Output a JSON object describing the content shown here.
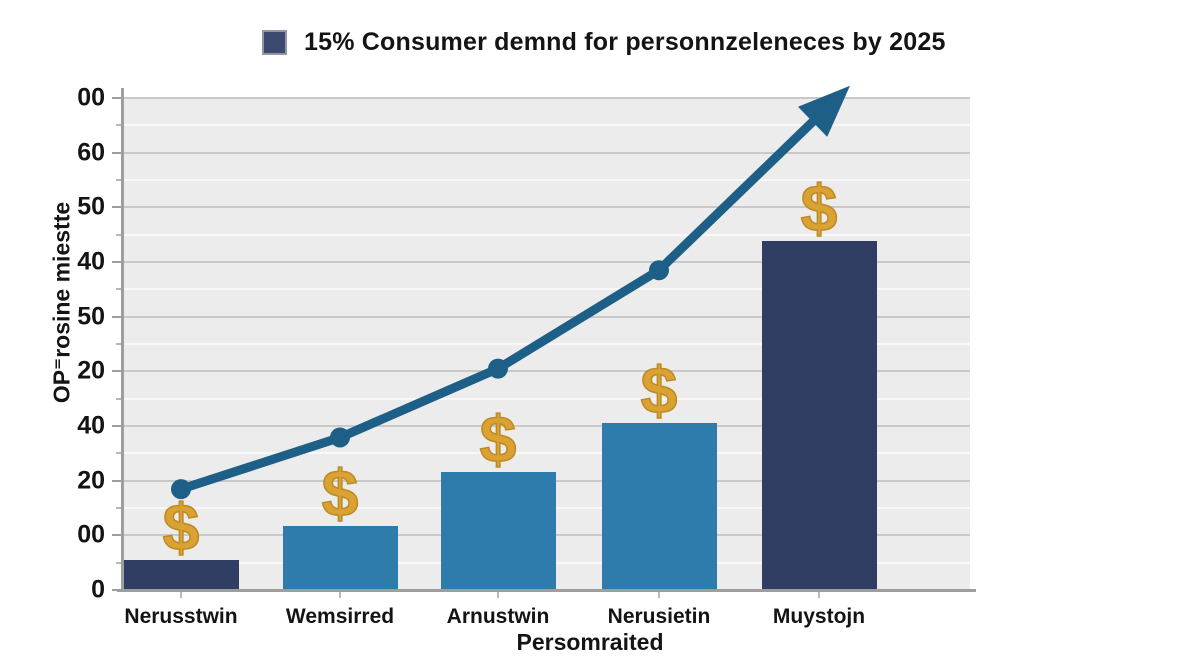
{
  "legend": {
    "label": "15% Consumer demnd for personnzeleneces by 2025",
    "swatch_color": "#3d4a70"
  },
  "chart_data": {
    "type": "bar",
    "subtype": "bar-with-trend-line-overlay",
    "title": "15% Consumer demnd for personnzeleneces by 2025",
    "xlabel": "Persomraited",
    "ylabel": "OP⁼rosine miestte",
    "categories": [
      "Nerusstwin",
      "Wemsirred",
      "Arnustwin",
      "Nerusietin",
      "Muystojn"
    ],
    "y_tick_labels_top_to_bottom": [
      "00",
      "60",
      "50",
      "40",
      "50",
      "20",
      "40",
      "20",
      "00",
      "0"
    ],
    "axis_note": "y tick labels are non-monotonic gibberish; values below are estimated as percent of full axis height (0-100)",
    "series": [
      {
        "name": "bars",
        "type": "bar",
        "values": [
          6,
          13,
          24,
          34,
          71
        ],
        "bar_colors": [
          "#313e64",
          "#2e7cab",
          "#2e7cab",
          "#2e7cab",
          "#313e64"
        ]
      },
      {
        "name": "trend-line",
        "type": "line",
        "values": [
          20.5,
          31,
          45,
          65
        ],
        "arrow_end_value": 102.5,
        "color": "#1e5f87",
        "marker": "dot",
        "end_cap": "arrowhead"
      }
    ],
    "annotations": {
      "icon": "dollar-icon",
      "glyph": "$",
      "color": "#d9a232",
      "placement": "one above each bar"
    },
    "grid": true,
    "legend_position": "top-center",
    "plot_background": "#ececec",
    "gridline_color": "#c9c9c9",
    "axis_color": "#9e9e9e",
    "ylim_pct": [
      0,
      100
    ]
  }
}
